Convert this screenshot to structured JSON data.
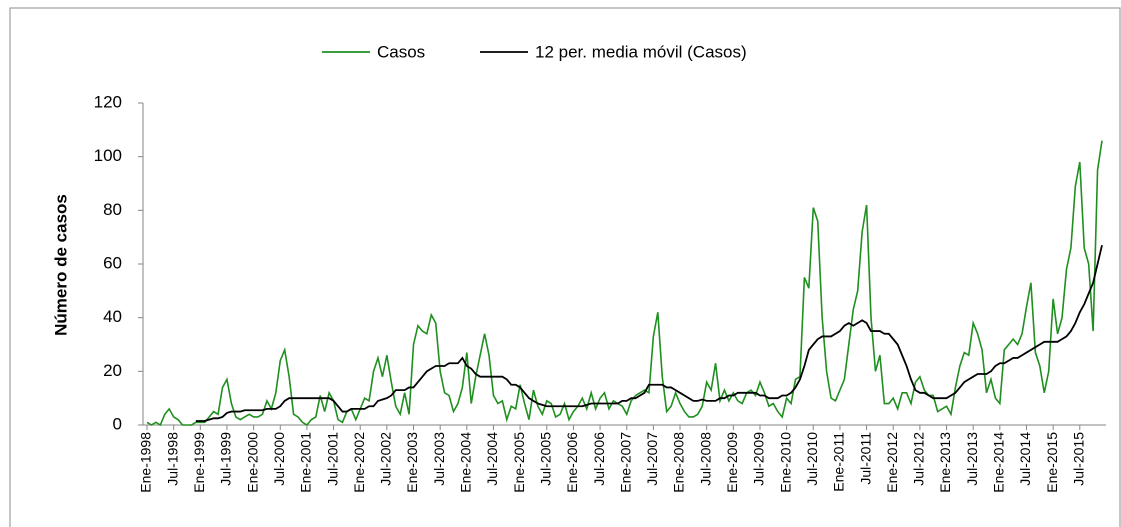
{
  "chart_data": {
    "type": "line",
    "y_label": "Número de casos",
    "categories": [
      "Ene-1998",
      null,
      null,
      null,
      null,
      null,
      "Jul-1998",
      null,
      null,
      null,
      null,
      null,
      "Ene-1999",
      null,
      null,
      null,
      null,
      null,
      "Jul-1999",
      null,
      null,
      null,
      null,
      null,
      "Ene-2000",
      null,
      null,
      null,
      null,
      null,
      "Jul-2000",
      null,
      null,
      null,
      null,
      null,
      "Ene-2001",
      null,
      null,
      null,
      null,
      null,
      "Jul-2001",
      null,
      null,
      null,
      null,
      null,
      "Ene-2002",
      null,
      null,
      null,
      null,
      null,
      "Jul-2002",
      null,
      null,
      null,
      null,
      null,
      "Ene-2003",
      null,
      null,
      null,
      null,
      null,
      "Jul-2003",
      null,
      null,
      null,
      null,
      null,
      "Ene-2004",
      null,
      null,
      null,
      null,
      null,
      "Jul-2004",
      null,
      null,
      null,
      null,
      null,
      "Ene-2005",
      null,
      null,
      null,
      null,
      null,
      "Jul-2005",
      null,
      null,
      null,
      null,
      null,
      "Ene-2006",
      null,
      null,
      null,
      null,
      null,
      "Jul-2006",
      null,
      null,
      null,
      null,
      null,
      "Ene-2007",
      null,
      null,
      null,
      null,
      null,
      "Jul-2007",
      null,
      null,
      null,
      null,
      null,
      "Ene-2008",
      null,
      null,
      null,
      null,
      null,
      "Jul-2008",
      null,
      null,
      null,
      null,
      null,
      "Ene-2009",
      null,
      null,
      null,
      null,
      null,
      "Jul-2009",
      null,
      null,
      null,
      null,
      null,
      "Ene-2010",
      null,
      null,
      null,
      null,
      null,
      "Jul-2010",
      null,
      null,
      null,
      null,
      null,
      "Ene-2011",
      null,
      null,
      null,
      null,
      null,
      "Jul-2011",
      null,
      null,
      null,
      null,
      null,
      "Ene-2012",
      null,
      null,
      null,
      null,
      null,
      "Jul-2012",
      null,
      null,
      null,
      null,
      null,
      "Ene-2013",
      null,
      null,
      null,
      null,
      null,
      "Jul-2013",
      null,
      null,
      null,
      null,
      null,
      "Ene-2014",
      null,
      null,
      null,
      null,
      null,
      "Jul-2014",
      null,
      null,
      null,
      null,
      null,
      "Ene-2015",
      null,
      null,
      null,
      null,
      null,
      "Jul-2015",
      null,
      null,
      null,
      null,
      null
    ],
    "series": [
      {
        "name": "Casos",
        "color": "#1f8f1f",
        "values": [
          1,
          0,
          1,
          0,
          4,
          6,
          3,
          2,
          0,
          0,
          0,
          1,
          1,
          1,
          3,
          5,
          4,
          14,
          17,
          8,
          3,
          2,
          3,
          4,
          3,
          3,
          4,
          9,
          6,
          12,
          24,
          28,
          18,
          4,
          3,
          1,
          0,
          2,
          3,
          11,
          5,
          12,
          9,
          2,
          1,
          5,
          6,
          2,
          6,
          10,
          9,
          20,
          25,
          18,
          26,
          16,
          7,
          4,
          12,
          4,
          30,
          37,
          35,
          34,
          41,
          38,
          20,
          12,
          11,
          5,
          8,
          14,
          27,
          8,
          18,
          26,
          34,
          26,
          11,
          8,
          9,
          2,
          7,
          6,
          15,
          8,
          2,
          13,
          7,
          4,
          9,
          8,
          3,
          4,
          8,
          2,
          5,
          7,
          10,
          6,
          12,
          6,
          10,
          12,
          6,
          9,
          8,
          7,
          4,
          9,
          11,
          12,
          13,
          12,
          33,
          42,
          18,
          5,
          7,
          12,
          8,
          5,
          3,
          3,
          4,
          7,
          16,
          13,
          23,
          9,
          13,
          9,
          12,
          9,
          8,
          12,
          13,
          11,
          16,
          12,
          7,
          8,
          5,
          3,
          10,
          8,
          17,
          18,
          55,
          51,
          81,
          76,
          40,
          20,
          10,
          9,
          13,
          17,
          30,
          43,
          50,
          72,
          82,
          40,
          20,
          26,
          8,
          8,
          10,
          6,
          12,
          12,
          8,
          16,
          18,
          13,
          11,
          11,
          5,
          6,
          7,
          4,
          14,
          22,
          27,
          26,
          38,
          34,
          28,
          12,
          17,
          10,
          8,
          28,
          30,
          32,
          30,
          34,
          44,
          53,
          27,
          22,
          12,
          20,
          47,
          34,
          40,
          58,
          66,
          89,
          98,
          66,
          60,
          35,
          95,
          106
        ]
      },
      {
        "name": "12 per. media móvil (Casos)",
        "color": "#000000",
        "values": [
          null,
          null,
          null,
          null,
          null,
          null,
          null,
          null,
          null,
          null,
          null,
          1.5,
          1.5,
          1.5,
          2,
          2.5,
          2.5,
          3,
          4.5,
          5,
          5,
          5,
          5.5,
          5.5,
          5.5,
          5.5,
          5.5,
          6,
          6,
          6,
          7,
          9,
          10,
          10,
          10,
          10,
          10,
          10,
          10,
          10,
          10,
          10,
          9,
          7,
          5,
          5,
          6,
          6,
          6,
          6,
          7,
          7,
          9,
          9.5,
          10,
          11,
          13,
          13,
          13,
          14,
          14,
          16,
          18,
          20,
          21,
          22,
          22,
          22,
          23,
          23,
          23,
          25,
          22,
          21,
          19,
          18,
          18,
          18,
          18,
          18,
          18,
          17,
          15,
          15,
          14,
          12,
          10,
          9,
          8,
          7.5,
          7,
          7,
          7,
          7,
          7,
          7,
          7,
          7,
          7,
          7.5,
          8,
          8,
          8,
          8,
          8,
          8,
          8,
          9,
          9,
          10,
          10,
          11,
          12,
          15,
          15,
          15,
          15,
          14,
          14,
          13,
          12,
          11,
          10,
          9,
          9,
          9.5,
          9,
          9,
          9,
          10,
          10,
          11,
          11,
          12,
          12,
          12,
          12,
          12,
          11,
          11,
          10,
          10,
          10,
          11,
          11,
          12,
          14,
          17,
          22,
          28,
          30,
          32,
          33,
          33,
          33,
          34,
          35,
          37,
          38,
          37,
          38,
          39,
          38,
          35,
          35,
          35,
          34,
          34,
          32,
          30,
          26,
          22,
          17,
          13,
          12,
          12,
          11,
          10,
          10,
          10,
          10,
          11,
          12,
          14,
          16,
          17,
          18,
          19,
          19,
          19,
          20,
          22,
          23,
          23,
          24,
          25,
          25,
          26,
          27,
          28,
          29,
          30,
          31,
          31,
          31,
          31,
          32,
          33,
          35,
          38,
          42,
          45,
          49,
          53,
          60,
          67
        ]
      }
    ],
    "ylim": [
      0,
      120
    ],
    "yticks": [
      0,
      20,
      40,
      60,
      80,
      100,
      120
    ],
    "legend": "top"
  }
}
